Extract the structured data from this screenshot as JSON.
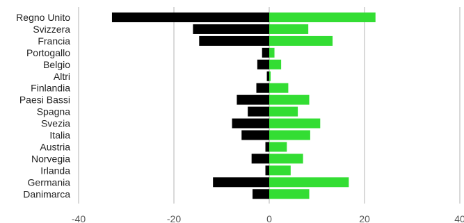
{
  "chart_data": {
    "type": "bar",
    "orientation": "horizontal",
    "diverging": true,
    "title": "",
    "xlabel": "",
    "ylabel": "",
    "categories": [
      "Regno Unito",
      "Svizzera",
      "Francia",
      "Portogallo",
      "Belgio",
      "Altri",
      "Finlandia",
      "Paesi Bassi",
      "Spagna",
      "Svezia",
      "Italia",
      "Austria",
      "Norvegia",
      "Irlanda",
      "Germania",
      "Danimarca"
    ],
    "series": [
      {
        "color": "#000000",
        "values": [
          -33,
          -16,
          -14.7,
          -1.5,
          -2.5,
          -0.5,
          -2.7,
          -6.8,
          -4.5,
          -7.8,
          -5.8,
          -0.8,
          -3.7,
          -0.8,
          -11.8,
          -3.5
        ]
      },
      {
        "color": "#33dd33",
        "values": [
          22.3,
          8.2,
          13.3,
          1.1,
          2.5,
          0.3,
          4.0,
          8.4,
          6.0,
          10.7,
          8.6,
          3.7,
          7.1,
          4.5,
          16.7,
          8.4
        ]
      }
    ],
    "xlim": [
      -40,
      40
    ],
    "xticks": [
      -40,
      -20,
      0,
      20,
      40
    ],
    "grid": true
  }
}
